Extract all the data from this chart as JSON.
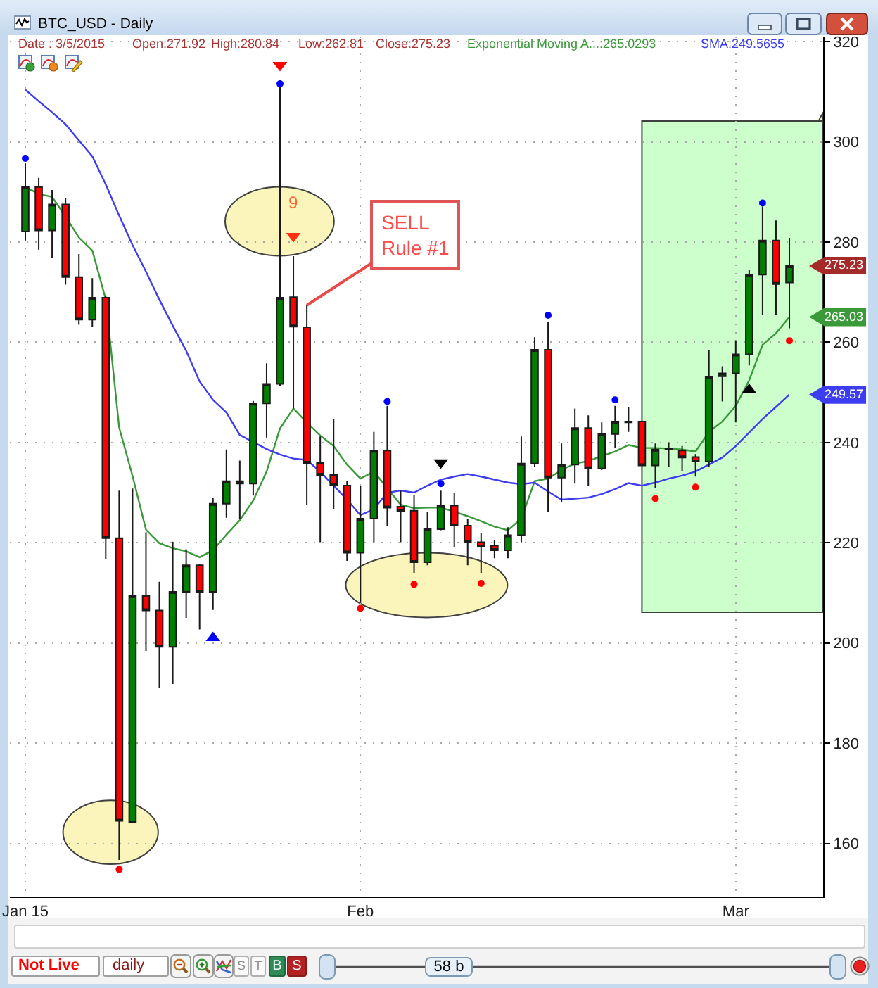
{
  "chart_data": {
    "type": "candlestick",
    "title": "BTC_USD - Daily",
    "x": [
      "2015-01-07",
      "2015-01-08",
      "2015-01-09",
      "2015-01-10",
      "2015-01-11",
      "2015-01-12",
      "2015-01-13",
      "2015-01-14",
      "2015-01-15",
      "2015-01-16",
      "2015-01-17",
      "2015-01-18",
      "2015-01-19",
      "2015-01-20",
      "2015-01-21",
      "2015-01-22",
      "2015-01-23",
      "2015-01-24",
      "2015-01-25",
      "2015-01-26",
      "2015-01-27",
      "2015-01-28",
      "2015-01-29",
      "2015-01-30",
      "2015-01-31",
      "2015-02-01",
      "2015-02-02",
      "2015-02-03",
      "2015-02-04",
      "2015-02-05",
      "2015-02-06",
      "2015-02-07",
      "2015-02-08",
      "2015-02-09",
      "2015-02-10",
      "2015-02-11",
      "2015-02-12",
      "2015-02-13",
      "2015-02-14",
      "2015-02-15",
      "2015-02-16",
      "2015-02-17",
      "2015-02-18",
      "2015-02-19",
      "2015-02-20",
      "2015-02-21",
      "2015-02-22",
      "2015-02-23",
      "2015-02-24",
      "2015-02-25",
      "2015-02-26",
      "2015-02-27",
      "2015-02-28",
      "2015-03-01",
      "2015-03-02",
      "2015-03-03",
      "2015-03-04",
      "2015-03-05"
    ],
    "ohlc": [
      [
        282.1,
        295.7,
        280.3,
        291.0
      ],
      [
        291.0,
        292.8,
        278.5,
        282.3
      ],
      [
        282.3,
        290.4,
        276.9,
        287.5
      ],
      [
        287.5,
        288.7,
        271.5,
        273.0
      ],
      [
        273.0,
        277.6,
        263.5,
        264.5
      ],
      [
        264.5,
        272.8,
        263.0,
        268.9
      ],
      [
        268.9,
        269.2,
        216.8,
        220.9
      ],
      [
        220.9,
        230.4,
        156.7,
        164.5
      ],
      [
        164.3,
        230.8,
        164.0,
        209.4
      ],
      [
        209.4,
        222.1,
        198.4,
        206.5
      ],
      [
        206.5,
        212.2,
        191.1,
        199.2
      ],
      [
        199.2,
        220.2,
        191.8,
        210.2
      ],
      [
        210.2,
        218.7,
        205.0,
        215.5
      ],
      [
        215.5,
        215.8,
        202.7,
        210.2
      ],
      [
        210.2,
        228.9,
        206.6,
        227.8
      ],
      [
        227.8,
        238.6,
        225.0,
        232.3
      ],
      [
        232.3,
        236.4,
        224.7,
        231.8
      ],
      [
        231.8,
        248.3,
        229.4,
        247.8
      ],
      [
        247.8,
        255.8,
        241.0,
        251.7
      ],
      [
        251.7,
        310.9,
        251.2,
        268.9
      ],
      [
        269.0,
        277.2,
        246.8,
        263.1
      ],
      [
        263.0,
        267.4,
        227.6,
        235.9
      ],
      [
        235.9,
        241.2,
        220.1,
        233.5
      ],
      [
        233.5,
        244.6,
        226.7,
        231.4
      ],
      [
        231.4,
        232.3,
        216.4,
        218.0
      ],
      [
        218.0,
        231.4,
        208.0,
        224.8
      ],
      [
        224.8,
        242.1,
        220.1,
        238.4
      ],
      [
        238.4,
        247.3,
        223.4,
        227.0
      ],
      [
        227.2,
        230.4,
        220.1,
        226.2
      ],
      [
        226.4,
        229.5,
        214.0,
        216.1
      ],
      [
        216.1,
        226.2,
        215.5,
        222.7
      ],
      [
        222.7,
        230.4,
        222.5,
        227.4
      ],
      [
        227.4,
        229.9,
        219.2,
        223.4
      ],
      [
        223.4,
        224.8,
        215.5,
        220.1
      ],
      [
        220.1,
        222.0,
        214.0,
        219.2
      ],
      [
        219.4,
        220.6,
        216.9,
        218.5
      ],
      [
        218.5,
        223.1,
        216.9,
        221.5
      ],
      [
        221.5,
        241.2,
        220.1,
        235.8
      ],
      [
        235.8,
        261.0,
        235.1,
        258.5
      ],
      [
        258.5,
        264.0,
        226.2,
        233.0
      ],
      [
        233.0,
        239.8,
        228.1,
        235.6
      ],
      [
        235.6,
        246.8,
        231.8,
        242.9
      ],
      [
        242.9,
        245.4,
        231.4,
        234.8
      ],
      [
        234.8,
        244.0,
        234.5,
        241.7
      ],
      [
        241.7,
        247.3,
        238.9,
        244.2
      ],
      [
        244.2,
        247.0,
        242.1,
        244.0
      ],
      [
        244.2,
        244.3,
        235.3,
        235.4
      ],
      [
        235.4,
        239.8,
        230.9,
        238.6
      ],
      [
        238.6,
        240.0,
        235.1,
        238.7
      ],
      [
        238.4,
        239.3,
        234.2,
        237.0
      ],
      [
        237.1,
        237.7,
        233.2,
        236.2
      ],
      [
        236.2,
        258.5,
        235.1,
        253.1
      ],
      [
        253.2,
        255.2,
        248.2,
        253.8
      ],
      [
        253.8,
        260.4,
        244.0,
        257.6
      ],
      [
        257.6,
        274.4,
        255.4,
        273.5
      ],
      [
        273.5,
        287.1,
        265.5,
        280.3
      ],
      [
        280.3,
        284.3,
        265.4,
        271.6
      ],
      [
        271.92,
        280.84,
        262.81,
        275.23
      ]
    ],
    "series": [
      {
        "name": "Exponential Moving A...:265.0293",
        "type": "line",
        "color": "#3a9a3a",
        "values": [
          291.0,
          289.6,
          289.0,
          285.1,
          280.9,
          278.3,
          268.6,
          243.0,
          233.3,
          222.6,
          219.9,
          218.9,
          218.3,
          217.1,
          218.5,
          221.6,
          224.5,
          228.4,
          234.2,
          242.8,
          246.8,
          244.0,
          241.4,
          239.3,
          235.6,
          232.8,
          234.2,
          230.9,
          227.6,
          226.9,
          227.0,
          227.0,
          226.2,
          225.3,
          224.3,
          223.2,
          222.5,
          224.8,
          232.3,
          232.8,
          234.5,
          235.8,
          236.3,
          237.3,
          238.2,
          239.5,
          238.9,
          238.9,
          238.8,
          238.6,
          238.2,
          242.1,
          244.2,
          247.3,
          252.4,
          259.5,
          261.8,
          265.03
        ]
      },
      {
        "name": "SMA:249.5655",
        "type": "line",
        "color": "#3c3cf0",
        "values": [
          310.4,
          308.1,
          305.9,
          303.5,
          300.3,
          297.1,
          291.5,
          285.3,
          279.4,
          274.1,
          268.5,
          263.3,
          258.3,
          252.2,
          248.5,
          246.0,
          241.5,
          240.1,
          238.7,
          237.6,
          236.8,
          236.5,
          234.2,
          231.4,
          228.6,
          225.5,
          226.7,
          230.0,
          230.4,
          230.0,
          231.4,
          232.6,
          233.2,
          233.7,
          233.2,
          232.6,
          232.0,
          231.7,
          232.0,
          230.2,
          228.6,
          228.8,
          229.0,
          229.7,
          230.7,
          231.9,
          231.4,
          232.0,
          232.8,
          233.4,
          234.2,
          235.6,
          237.0,
          239.3,
          242.0,
          244.7,
          247.1,
          249.57
        ]
      },
      {
        "type": "scatter",
        "marker": "circle",
        "color": "#0000ff",
        "x": [
          "2015-01-07",
          "2015-01-26",
          "2015-02-03",
          "2015-02-07",
          "2015-02-15",
          "2015-02-20",
          "2015-03-03"
        ],
        "values": [
          296.7,
          311.6,
          248.2,
          231.8,
          265.4,
          248.5,
          287.8
        ]
      },
      {
        "type": "scatter",
        "marker": "circle",
        "color": "#ff0000",
        "x": [
          "2015-01-14",
          "2015-02-01",
          "2015-02-05",
          "2015-02-10",
          "2015-02-23",
          "2015-02-26",
          "2015-03-05"
        ],
        "values": [
          154.8,
          206.9,
          211.7,
          211.9,
          228.8,
          231.1,
          260.3
        ]
      },
      {
        "type": "scatter",
        "marker": "triangle",
        "colors": [
          "#0000ff",
          "#ff0000",
          "#ff3010",
          "#000000",
          "#000000"
        ],
        "x": [
          "2015-01-21",
          "2015-01-26",
          "2015-01-27",
          "2015-02-07",
          "2015-03-02"
        ],
        "values": [
          201.0,
          315.3,
          281.2,
          236.0,
          250.5
        ]
      }
    ],
    "xlim": [
      "2015-01-05T20:17",
      "2015-03-07T12:27"
    ],
    "xticks": [
      {
        "value": "2015-01-07",
        "label": "Jan 15"
      },
      {
        "value": "2015-02-01",
        "label": "Feb"
      },
      {
        "value": "2015-03-01",
        "label": "Mar"
      }
    ],
    "ylim": [
      149.4,
      321.0
    ],
    "yticks": [
      160,
      180,
      200,
      220,
      240,
      260,
      280,
      300,
      320
    ],
    "grid": true,
    "legend": "top",
    "bands": [
      {
        "axis": "x",
        "from": "2015-02-22",
        "to": "2015-03-07T12:27",
        "color": "#ccffcc"
      }
    ],
    "annotations": [
      "Date : 3/5/2015",
      "Open:271.92",
      "High:280.84",
      "Low:262.81",
      "Close:275.23",
      {
        "text": "9",
        "x": "2015-01-27",
        "y": 281.2
      },
      {
        "text": "SELL\nRule #1",
        "x": "2015-01-28",
        "y": 267.4
      },
      {
        "text": "275.23",
        "x": "2015-03-05",
        "y": 275.23
      },
      {
        "text": "265.03",
        "x": "2015-03-05",
        "y": 265.03
      },
      {
        "text": "249.57",
        "x": "2015-03-05",
        "y": 249.57
      },
      "Not Live",
      "daily",
      "S",
      "T",
      "B",
      "S",
      "58 b"
    ]
  }
}
